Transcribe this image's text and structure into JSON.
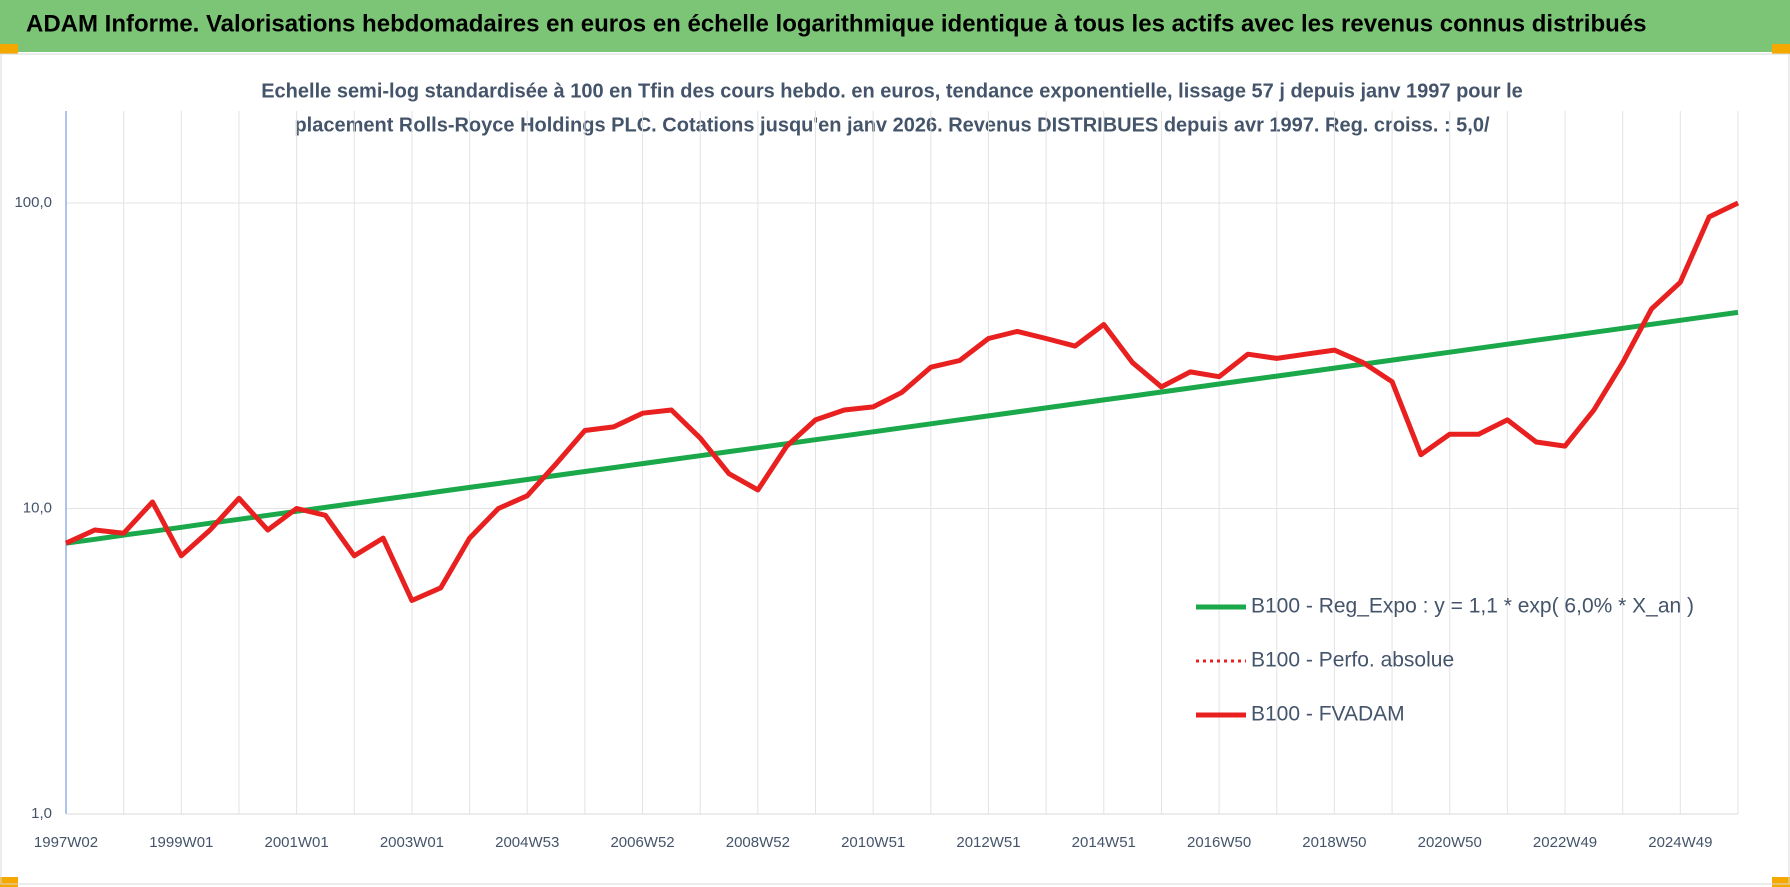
{
  "header": {
    "title": "ADAM Informe. Valorisations hebdomadaires en euros en échelle logarithmique identique à tous les actifs avec les revenus connus distribués"
  },
  "chart_data": {
    "type": "line",
    "title": "Echelle semi-log standardisée à 100 en Tfin des cours hebdo. en euros, tendance exponentielle, lissage 57 j depuis janv 1997 pour le",
    "subtitle": "placement Rolls-Royce Holdings PLC. Cotations jusqu'en janv 2026. Revenus DISTRIBUES depuis avr 1997. Reg. croiss. : 5,0/",
    "x": [
      "1997W02",
      null,
      null,
      null,
      "1999W01",
      null,
      null,
      null,
      "2001W01",
      null,
      null,
      null,
      "2003W01",
      null,
      null,
      null,
      "2004W53",
      null,
      null,
      null,
      "2006W52",
      null,
      null,
      null,
      "2008W52",
      null,
      null,
      null,
      "2010W51",
      null,
      null,
      null,
      "2012W51",
      null,
      null,
      null,
      "2014W51",
      null,
      null,
      null,
      "2016W50",
      null,
      null,
      null,
      "2018W50",
      null,
      null,
      null,
      "2020W50",
      null,
      null,
      null,
      "2022W49",
      null,
      null,
      null,
      "2024W49",
      null,
      null
    ],
    "series": [
      {
        "name": "B100 - Reg_Expo : y = 1,1 * exp( 6,0% *  X_an )",
        "color": "#1aa84a",
        "style": "solid",
        "values": [
          7.7,
          7.93,
          8.18,
          8.42,
          8.68,
          8.95,
          9.22,
          9.5,
          9.79,
          10.08,
          10.39,
          10.71,
          11.03,
          11.37,
          11.72,
          12.07,
          12.44,
          12.82,
          13.21,
          13.61,
          14.03,
          14.45,
          14.89,
          15.35,
          15.81,
          16.3,
          16.79,
          17.3,
          17.83,
          18.37,
          18.93,
          19.51,
          20.1,
          20.71,
          21.34,
          21.99,
          22.66,
          23.35,
          24.06,
          24.8,
          25.55,
          26.33,
          27.13,
          27.96,
          28.81,
          29.69,
          30.59,
          31.52,
          32.48,
          33.47,
          34.49,
          35.54,
          36.62,
          37.74,
          38.89,
          40.07,
          41.29,
          42.55,
          43.84
        ]
      },
      {
        "name": "B100 - Perfo. absolue",
        "color": "#e8201f",
        "style": "dotted",
        "values": [
          7.7,
          8.5,
          8.3,
          10.5,
          7.0,
          8.5,
          10.8,
          8.5,
          10.0,
          9.5,
          7.0,
          8.0,
          5.0,
          5.5,
          8.0,
          10.0,
          11.0,
          14.0,
          18.0,
          18.5,
          20.5,
          21.0,
          17.0,
          13.0,
          11.5,
          16.0,
          19.5,
          21.0,
          21.5,
          24.0,
          29.0,
          30.5,
          36.0,
          38.0,
          36.0,
          34.0,
          40.0,
          30.0,
          25.0,
          28.0,
          27.0,
          32.0,
          31.0,
          32.0,
          33.0,
          30.0,
          26.0,
          15.0,
          17.5,
          17.5,
          19.5,
          16.5,
          16.0,
          21.0,
          30.0,
          45.0,
          55.0,
          90.0,
          100.0
        ]
      },
      {
        "name": "B100 - FVADAM",
        "color": "#e8201f",
        "style": "solid",
        "values": [
          7.7,
          8.5,
          8.3,
          10.5,
          7.0,
          8.5,
          10.8,
          8.5,
          10.0,
          9.5,
          7.0,
          8.0,
          5.0,
          5.5,
          8.0,
          10.0,
          11.0,
          14.0,
          18.0,
          18.5,
          20.5,
          21.0,
          17.0,
          13.0,
          11.5,
          16.0,
          19.5,
          21.0,
          21.5,
          24.0,
          29.0,
          30.5,
          36.0,
          38.0,
          36.0,
          34.0,
          40.0,
          30.0,
          25.0,
          28.0,
          27.0,
          32.0,
          31.0,
          32.0,
          33.0,
          30.0,
          26.0,
          15.0,
          17.5,
          17.5,
          19.5,
          16.5,
          16.0,
          21.0,
          30.0,
          45.0,
          55.0,
          90.0,
          100.0
        ]
      }
    ],
    "ylim": [
      1,
      200
    ],
    "yticks": [
      {
        "value": 1,
        "label": "1,0"
      },
      {
        "value": 10,
        "label": "10,0"
      },
      {
        "value": 100,
        "label": "100,0"
      }
    ],
    "log_y": true,
    "grid": true
  }
}
